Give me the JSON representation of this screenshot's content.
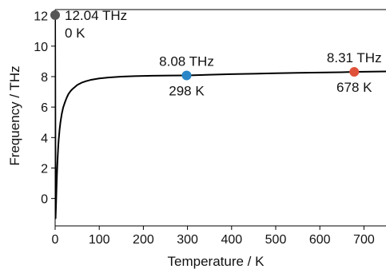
{
  "chart_data": {
    "type": "line",
    "xlabel": "Temperature / K",
    "ylabel": "Frequency / THz",
    "xlim": [
      0,
      750
    ],
    "ylim": [
      -1.8,
      12.4
    ],
    "xticks": [
      0,
      100,
      200,
      300,
      400,
      500,
      600,
      700
    ],
    "yticks": [
      0,
      2,
      4,
      6,
      8,
      10,
      12
    ],
    "grid": false,
    "series": [
      {
        "color": "#000000",
        "x": [
          0,
          1,
          2,
          3,
          4,
          5,
          6,
          7,
          8,
          10,
          12,
          15,
          18,
          22,
          26,
          30,
          35,
          40,
          50,
          60,
          70,
          80,
          100,
          120,
          150,
          180,
          220,
          260,
          298,
          350,
          400,
          450,
          500,
          550,
          600,
          650,
          678,
          700,
          750
        ],
        "y": [
          12.04,
          -1.3,
          -0.4,
          0.6,
          1.5,
          2.25,
          2.85,
          3.4,
          3.85,
          4.5,
          5.0,
          5.55,
          5.95,
          6.3,
          6.6,
          6.85,
          7.05,
          7.2,
          7.45,
          7.6,
          7.7,
          7.78,
          7.88,
          7.94,
          8.0,
          8.03,
          8.06,
          8.07,
          8.08,
          8.12,
          8.16,
          8.19,
          8.22,
          8.25,
          8.27,
          8.29,
          8.31,
          8.32,
          8.34
        ]
      }
    ],
    "points": [
      {
        "x": 0,
        "y": 12.04,
        "color": "#555555",
        "value_label": "12.04 THz",
        "temp_label": "0 K"
      },
      {
        "x": 298,
        "y": 8.08,
        "color": "#2a86c6",
        "value_label": "8.08 THz",
        "temp_label": "298 K"
      },
      {
        "x": 678,
        "y": 8.31,
        "color": "#e0513a",
        "value_label": "8.31 THz",
        "temp_label": "678 K"
      }
    ]
  }
}
